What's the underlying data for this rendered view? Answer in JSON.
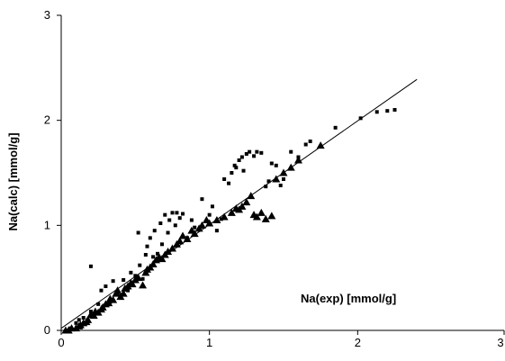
{
  "chart_data": {
    "type": "scatter",
    "title": "",
    "xlabel": "Na(exp)  [mmol/g]",
    "ylabel": "Na(calc)  [mmol/g]",
    "xlim": [
      0,
      3
    ],
    "ylim": [
      0,
      3
    ],
    "x_ticks": [
      "0",
      "1",
      "2",
      "3"
    ],
    "y_ticks": [
      "0",
      "1",
      "2",
      "3"
    ],
    "grid": false,
    "legend": "none",
    "series": [
      {
        "marker": "square",
        "points": [
          [
            0.06,
            0.02
          ],
          [
            0.1,
            0.07
          ],
          [
            0.12,
            0.1
          ],
          [
            0.15,
            0.12
          ],
          [
            0.18,
            0.1
          ],
          [
            0.2,
            0.61
          ],
          [
            0.2,
            0.18
          ],
          [
            0.22,
            0.14
          ],
          [
            0.25,
            0.25
          ],
          [
            0.27,
            0.38
          ],
          [
            0.28,
            0.22
          ],
          [
            0.3,
            0.42
          ],
          [
            0.33,
            0.27
          ],
          [
            0.35,
            0.47
          ],
          [
            0.38,
            0.35
          ],
          [
            0.4,
            0.33
          ],
          [
            0.42,
            0.48
          ],
          [
            0.45,
            0.38
          ],
          [
            0.47,
            0.55
          ],
          [
            0.48,
            0.45
          ],
          [
            0.5,
            0.52
          ],
          [
            0.52,
            0.93
          ],
          [
            0.53,
            0.62
          ],
          [
            0.55,
            0.49
          ],
          [
            0.57,
            0.72
          ],
          [
            0.58,
            0.8
          ],
          [
            0.6,
            0.88
          ],
          [
            0.62,
            0.7
          ],
          [
            0.63,
            0.95
          ],
          [
            0.65,
            0.73
          ],
          [
            0.67,
            1.02
          ],
          [
            0.68,
            0.82
          ],
          [
            0.7,
            1.1
          ],
          [
            0.72,
            0.93
          ],
          [
            0.73,
            1.05
          ],
          [
            0.75,
            1.12
          ],
          [
            0.77,
            1.0
          ],
          [
            0.78,
            1.12
          ],
          [
            0.8,
            1.07
          ],
          [
            0.82,
            1.11
          ],
          [
            0.85,
            0.88
          ],
          [
            0.88,
            1.05
          ],
          [
            0.9,
            0.98
          ],
          [
            0.95,
            1.25
          ],
          [
            1.0,
            1.1
          ],
          [
            1.02,
            1.18
          ],
          [
            1.05,
            0.95
          ],
          [
            1.08,
            1.06
          ],
          [
            1.1,
            1.44
          ],
          [
            1.13,
            1.4
          ],
          [
            1.15,
            1.5
          ],
          [
            1.17,
            1.57
          ],
          [
            1.18,
            1.55
          ],
          [
            1.2,
            1.62
          ],
          [
            1.22,
            1.65
          ],
          [
            1.23,
            1.52
          ],
          [
            1.25,
            1.68
          ],
          [
            1.27,
            1.7
          ],
          [
            1.3,
            1.66
          ],
          [
            1.32,
            1.7
          ],
          [
            1.35,
            1.69
          ],
          [
            1.38,
            1.37
          ],
          [
            1.4,
            1.42
          ],
          [
            1.42,
            1.59
          ],
          [
            1.45,
            1.57
          ],
          [
            1.48,
            1.38
          ],
          [
            1.5,
            1.44
          ],
          [
            1.55,
            1.7
          ],
          [
            1.6,
            1.65
          ],
          [
            1.65,
            1.77
          ],
          [
            1.68,
            1.8
          ],
          [
            1.85,
            1.93
          ],
          [
            2.02,
            2.02
          ],
          [
            2.13,
            2.08
          ],
          [
            2.2,
            2.09
          ],
          [
            2.25,
            2.1
          ]
        ]
      },
      {
        "marker": "triangle",
        "points": [
          [
            0.03,
            0.0
          ],
          [
            0.05,
            0.0
          ],
          [
            0.07,
            0.02
          ],
          [
            0.1,
            0.02
          ],
          [
            0.12,
            0.04
          ],
          [
            0.13,
            0.05
          ],
          [
            0.15,
            0.07
          ],
          [
            0.17,
            0.08
          ],
          [
            0.18,
            0.1
          ],
          [
            0.2,
            0.15
          ],
          [
            0.22,
            0.14
          ],
          [
            0.23,
            0.18
          ],
          [
            0.25,
            0.17
          ],
          [
            0.27,
            0.2
          ],
          [
            0.28,
            0.22
          ],
          [
            0.3,
            0.25
          ],
          [
            0.32,
            0.26
          ],
          [
            0.33,
            0.3
          ],
          [
            0.35,
            0.29
          ],
          [
            0.37,
            0.35
          ],
          [
            0.38,
            0.38
          ],
          [
            0.4,
            0.32
          ],
          [
            0.42,
            0.35
          ],
          [
            0.43,
            0.4
          ],
          [
            0.45,
            0.42
          ],
          [
            0.47,
            0.45
          ],
          [
            0.48,
            0.44
          ],
          [
            0.5,
            0.48
          ],
          [
            0.52,
            0.5
          ],
          [
            0.55,
            0.43
          ],
          [
            0.57,
            0.55
          ],
          [
            0.58,
            0.58
          ],
          [
            0.6,
            0.6
          ],
          [
            0.62,
            0.63
          ],
          [
            0.64,
            0.67
          ],
          [
            0.66,
            0.7
          ],
          [
            0.68,
            0.68
          ],
          [
            0.7,
            0.72
          ],
          [
            0.72,
            0.75
          ],
          [
            0.75,
            0.78
          ],
          [
            0.78,
            0.82
          ],
          [
            0.8,
            0.85
          ],
          [
            0.82,
            0.9
          ],
          [
            0.85,
            0.87
          ],
          [
            0.88,
            0.95
          ],
          [
            0.9,
            0.92
          ],
          [
            0.93,
            0.97
          ],
          [
            0.95,
            1.0
          ],
          [
            0.98,
            1.05
          ],
          [
            1.0,
            1.02
          ],
          [
            1.05,
            1.05
          ],
          [
            1.1,
            1.08
          ],
          [
            1.15,
            1.12
          ],
          [
            1.18,
            1.16
          ],
          [
            1.2,
            1.15
          ],
          [
            1.22,
            1.18
          ],
          [
            1.25,
            1.22
          ],
          [
            1.28,
            1.28
          ],
          [
            1.3,
            1.1
          ],
          [
            1.32,
            1.08
          ],
          [
            1.35,
            1.12
          ],
          [
            1.38,
            1.06
          ],
          [
            1.42,
            1.09
          ],
          [
            1.45,
            1.44
          ],
          [
            1.5,
            1.5
          ],
          [
            1.55,
            1.55
          ],
          [
            1.6,
            1.62
          ],
          [
            1.75,
            1.76
          ]
        ]
      }
    ],
    "fit_line": [
      [
        0,
        0.02
      ],
      [
        2.4,
        2.39
      ]
    ]
  }
}
